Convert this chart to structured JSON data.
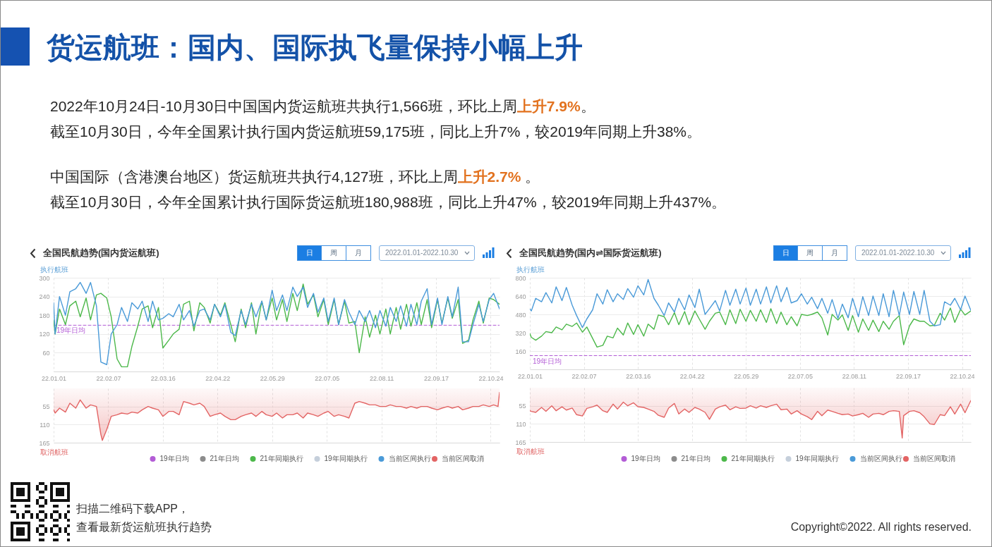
{
  "chart_data": [
    {
      "type": "other",
      "title": "货运航班：国内、国际执飞量保持小幅上升",
      "annotations": [
        "2022年10月24日-10月30日中国国内货运航班共执行1,566班，环比上周",
        "上升7.9%",
        "。",
        "截至10月30日，今年全国累计执行国内货运航班59,175班，同比上升7%，较2019年同期上升38%。",
        "中国国际（含港澳台地区）货运航班共执行4,127班，环比上周",
        "上升2.7%",
        " 。",
        "截至10月30日，今年全国累计执行国际货运航班180,988班，同比上升47%，较2019年同期上升437%。",
        "扫描二维码下载APP，",
        "查看最新货运航班执行趋势",
        "Copyright©2022. All rights reserved."
      ]
    },
    {
      "type": "line",
      "title": "全国民航趋势(国内货运航班)",
      "annotations": [
        "日",
        "周",
        "月",
        "2022.01.01-2022.10.30",
        {
          "text": "19年日均",
          "x": "2022-01-01",
          "y": 148
        }
      ],
      "ylabel": "执行航班",
      "grid": true,
      "legend": "bottom right",
      "x": [
        "2022-01-01",
        "2022-01-02",
        "2022-01-05",
        "2022-01-09",
        "2022-01-12",
        "2022-01-16",
        "2022-01-19",
        "2022-01-23",
        "2022-01-26",
        "2022-01-30",
        "2022-02-02",
        "2022-02-06",
        "2022-02-09",
        "2022-02-13",
        "2022-02-16",
        "2022-02-20",
        "2022-02-23",
        "2022-02-27",
        "2022-03-02",
        "2022-03-06",
        "2022-03-09",
        "2022-03-13",
        "2022-03-16",
        "2022-03-20",
        "2022-03-23",
        "2022-03-27",
        "2022-03-30",
        "2022-04-03",
        "2022-04-06",
        "2022-04-10",
        "2022-04-13",
        "2022-04-17",
        "2022-04-20",
        "2022-04-24",
        "2022-04-27",
        "2022-05-01",
        "2022-05-04",
        "2022-05-08",
        "2022-05-11",
        "2022-05-15",
        "2022-05-18",
        "2022-05-22",
        "2022-05-25",
        "2022-05-29",
        "2022-06-01",
        "2022-06-05",
        "2022-06-08",
        "2022-06-12",
        "2022-06-15",
        "2022-06-19",
        "2022-06-22",
        "2022-06-26",
        "2022-06-29",
        "2022-07-03",
        "2022-07-06",
        "2022-07-10",
        "2022-07-13",
        "2022-07-17",
        "2022-07-20",
        "2022-07-24",
        "2022-07-27",
        "2022-07-31",
        "2022-08-03",
        "2022-08-07",
        "2022-08-10",
        "2022-08-14",
        "2022-08-17",
        "2022-08-21",
        "2022-08-24",
        "2022-08-28",
        "2022-08-31",
        "2022-09-04",
        "2022-09-07",
        "2022-09-11",
        "2022-09-14",
        "2022-09-18",
        "2022-09-21",
        "2022-09-25",
        "2022-09-28",
        "2022-10-02",
        "2022-10-05",
        "2022-10-09",
        "2022-10-12",
        "2022-10-16",
        "2022-10-19",
        "2022-10-23",
        "2022-10-26",
        "2022-10-30"
      ],
      "xlim": [
        "2022-01-01",
        "2022-10-30"
      ],
      "xticks": [
        {
          "value": "2022-01-01",
          "label": "22.01.01"
        },
        {
          "value": "2022-02-07",
          "label": "22.02.07"
        },
        {
          "value": "2022-03-16",
          "label": "22.03.16"
        },
        {
          "value": "2022-04-22",
          "label": "22.04.22"
        },
        {
          "value": "2022-05-29",
          "label": "22.05.29"
        },
        {
          "value": "2022-07-05",
          "label": "22.07.05"
        },
        {
          "value": "2022-08-11",
          "label": "22.08.11"
        },
        {
          "value": "2022-09-17",
          "label": "22.09.17"
        },
        {
          "value": "2022-10-24",
          "label": "22.10.24"
        }
      ],
      "ylim": [
        0,
        300
      ],
      "yticks": [
        60,
        120,
        180,
        240,
        300
      ],
      "series": [
        {
          "name": "19年日均",
          "color": "#b35cd6",
          "line_style": "dashed",
          "x": [
            "2022-01-01",
            "2022-10-30"
          ],
          "values": [
            148,
            148
          ]
        },
        {
          "name": "21年日均",
          "color": "#8c8c8c",
          "values": [
            null,
            null,
            null,
            null,
            null,
            null,
            null,
            null,
            null,
            null,
            null,
            null,
            null,
            null,
            null,
            null,
            null,
            null,
            null,
            null,
            null,
            null,
            null,
            null,
            null,
            null,
            null,
            null,
            null,
            null,
            null,
            null,
            null,
            null,
            null,
            null,
            null,
            null,
            null,
            null,
            null,
            null,
            null,
            null,
            null,
            null,
            null,
            null,
            null,
            null,
            null,
            null,
            null,
            null,
            null,
            null,
            null,
            null,
            null,
            null,
            null,
            null,
            null,
            null,
            null,
            null,
            null,
            null,
            null,
            null,
            null,
            null,
            null,
            null,
            null,
            null,
            null,
            null,
            null,
            null,
            null,
            null,
            null,
            null,
            null,
            null,
            null,
            null
          ]
        },
        {
          "name": "21年同期执行",
          "color": "#4cb84a",
          "values": [
            165,
            120,
            200,
            150,
            210,
            225,
            175,
            235,
            165,
            245,
            250,
            235,
            175,
            40,
            15,
            15,
            80,
            145,
            200,
            210,
            140,
            205,
            75,
            100,
            120,
            135,
            215,
            225,
            130,
            220,
            205,
            155,
            215,
            180,
            220,
            150,
            95,
            200,
            140,
            220,
            120,
            225,
            165,
            235,
            165,
            230,
            160,
            250,
            195,
            280,
            215,
            245,
            175,
            230,
            150,
            230,
            150,
            225,
            155,
            160,
            60,
            175,
            110,
            180,
            120,
            200,
            120,
            205,
            135,
            215,
            145,
            220,
            150,
            230,
            140,
            230,
            155,
            235,
            170,
            230,
            90,
            100,
            165,
            225,
            155,
            235,
            230,
            215
          ]
        },
        {
          "name": "19年同期执行",
          "color": "#c5cfdb",
          "values": [
            null,
            null,
            null,
            null,
            null,
            null,
            null,
            null,
            null,
            null,
            null,
            null,
            null,
            null,
            null,
            null,
            null,
            null,
            null,
            null,
            null,
            null,
            null,
            null,
            null,
            null,
            null,
            null,
            null,
            null,
            null,
            null,
            null,
            null,
            null,
            null,
            null,
            null,
            null,
            null,
            null,
            null,
            null,
            null,
            null,
            null,
            null,
            null,
            null,
            null,
            null,
            null,
            null,
            null,
            null,
            null,
            null,
            null,
            null,
            null,
            null,
            null,
            null,
            null,
            null,
            null,
            null,
            null,
            null,
            null,
            null,
            null,
            null,
            null,
            null,
            null,
            null,
            null,
            null,
            null,
            null,
            null,
            null,
            null,
            null,
            null,
            null,
            null
          ]
        },
        {
          "name": "当前区间执行",
          "color": "#4a9ad8",
          "values": [
            220,
            120,
            240,
            180,
            255,
            265,
            285,
            250,
            285,
            210,
            30,
            22,
            120,
            150,
            205,
            160,
            220,
            200,
            225,
            160,
            225,
            165,
            170,
            185,
            175,
            215,
            165,
            195,
            145,
            195,
            200,
            165,
            215,
            175,
            215,
            125,
            115,
            195,
            150,
            215,
            175,
            225,
            165,
            260,
            195,
            245,
            195,
            270,
            240,
            270,
            205,
            250,
            190,
            235,
            160,
            235,
            150,
            230,
            190,
            150,
            195,
            160,
            195,
            140,
            195,
            145,
            205,
            160,
            210,
            145,
            215,
            150,
            225,
            265,
            150,
            235,
            150,
            240,
            175,
            270,
            95,
            95,
            150,
            215,
            160,
            230,
            250,
            200
          ]
        }
      ]
    },
    {
      "type": "area",
      "ylabel": "取消航班",
      "grid": true,
      "tick_labels": "y",
      "legend": "bottom right",
      "x": [
        "2022-01-01",
        "2022-01-02",
        "2022-01-05",
        "2022-01-09",
        "2022-01-12",
        "2022-01-16",
        "2022-01-19",
        "2022-01-23",
        "2022-01-26",
        "2022-01-30",
        "2022-02-02",
        "2022-02-03",
        "2022-02-06",
        "2022-02-09",
        "2022-02-13",
        "2022-02-16",
        "2022-02-20",
        "2022-02-23",
        "2022-02-27",
        "2022-03-02",
        "2022-03-06",
        "2022-03-09",
        "2022-03-13",
        "2022-03-16",
        "2022-03-20",
        "2022-03-23",
        "2022-03-27",
        "2022-03-30",
        "2022-04-03",
        "2022-04-06",
        "2022-04-10",
        "2022-04-13",
        "2022-04-17",
        "2022-04-20",
        "2022-04-24",
        "2022-04-27",
        "2022-05-01",
        "2022-05-04",
        "2022-05-08",
        "2022-05-11",
        "2022-05-15",
        "2022-05-18",
        "2022-05-22",
        "2022-05-25",
        "2022-05-29",
        "2022-06-01",
        "2022-06-05",
        "2022-06-08",
        "2022-06-12",
        "2022-06-15",
        "2022-06-19",
        "2022-06-22",
        "2022-06-26",
        "2022-06-29",
        "2022-07-03",
        "2022-07-06",
        "2022-07-10",
        "2022-07-13",
        "2022-07-17",
        "2022-07-20",
        "2022-07-24",
        "2022-07-27",
        "2022-07-31",
        "2022-08-03",
        "2022-08-07",
        "2022-08-10",
        "2022-08-14",
        "2022-08-17",
        "2022-08-21",
        "2022-08-24",
        "2022-08-28",
        "2022-08-31",
        "2022-09-04",
        "2022-09-07",
        "2022-09-11",
        "2022-09-14",
        "2022-09-18",
        "2022-09-21",
        "2022-09-25",
        "2022-09-28",
        "2022-10-02",
        "2022-10-05",
        "2022-10-09",
        "2022-10-12",
        "2022-10-16",
        "2022-10-19",
        "2022-10-23",
        "2022-10-26",
        "2022-10-29",
        "2022-10-30"
      ],
      "xlim": [
        "2022-01-01",
        "2022-10-30"
      ],
      "xticks": [
        {
          "value": "2022-01-01",
          "label": null
        },
        {
          "value": "2022-02-07",
          "label": null
        },
        {
          "value": "2022-03-16",
          "label": null
        },
        {
          "value": "2022-04-22",
          "label": null
        },
        {
          "value": "2022-05-29",
          "label": null
        },
        {
          "value": "2022-07-05",
          "label": null
        },
        {
          "value": "2022-08-11",
          "label": null
        },
        {
          "value": "2022-09-17",
          "label": null
        },
        {
          "value": "2022-10-24",
          "label": null
        }
      ],
      "ylim": [
        165,
        0
      ],
      "yticks": [
        55,
        110,
        165
      ],
      "series": [
        {
          "name": "当前区间取消",
          "color": "#e36464",
          "values": [
            65,
            75,
            60,
            72,
            45,
            60,
            35,
            60,
            50,
            55,
            140,
            158,
            125,
            85,
            80,
            75,
            78,
            72,
            75,
            65,
            55,
            60,
            65,
            85,
            70,
            70,
            80,
            40,
            45,
            50,
            45,
            55,
            85,
            80,
            75,
            85,
            95,
            95,
            85,
            80,
            75,
            85,
            70,
            80,
            85,
            75,
            90,
            80,
            80,
            75,
            90,
            75,
            80,
            85,
            75,
            70,
            85,
            80,
            85,
            90,
            45,
            40,
            45,
            50,
            50,
            55,
            55,
            50,
            55,
            55,
            60,
            55,
            60,
            55,
            55,
            60,
            65,
            60,
            55,
            60,
            55,
            65,
            60,
            55,
            55,
            50,
            55,
            50,
            55,
            12
          ]
        }
      ]
    },
    {
      "type": "line",
      "title": "全国民航趋势(国内⇌国际货运航班)",
      "annotations": [
        "日",
        "周",
        "月",
        "2022.01.01-2022.10.30",
        {
          "text": "19年日均",
          "x": "2022-01-01",
          "y": 120
        }
      ],
      "ylabel": "执行航班",
      "grid": true,
      "legend": "bottom right",
      "x": [
        "2022-01-01",
        "2022-01-02",
        "2022-01-05",
        "2022-01-09",
        "2022-01-12",
        "2022-01-16",
        "2022-01-19",
        "2022-01-23",
        "2022-01-26",
        "2022-01-30",
        "2022-02-02",
        "2022-02-06",
        "2022-02-09",
        "2022-02-13",
        "2022-02-16",
        "2022-02-20",
        "2022-02-23",
        "2022-02-27",
        "2022-03-02",
        "2022-03-06",
        "2022-03-09",
        "2022-03-13",
        "2022-03-16",
        "2022-03-20",
        "2022-03-23",
        "2022-03-27",
        "2022-03-30",
        "2022-04-03",
        "2022-04-06",
        "2022-04-10",
        "2022-04-13",
        "2022-04-17",
        "2022-04-20",
        "2022-04-24",
        "2022-04-27",
        "2022-05-01",
        "2022-05-04",
        "2022-05-08",
        "2022-05-11",
        "2022-05-15",
        "2022-05-18",
        "2022-05-22",
        "2022-05-25",
        "2022-05-29",
        "2022-06-01",
        "2022-06-05",
        "2022-06-08",
        "2022-06-12",
        "2022-06-15",
        "2022-06-19",
        "2022-06-22",
        "2022-06-26",
        "2022-06-29",
        "2022-07-03",
        "2022-07-06",
        "2022-07-10",
        "2022-07-13",
        "2022-07-17",
        "2022-07-20",
        "2022-07-24",
        "2022-07-27",
        "2022-07-31",
        "2022-08-03",
        "2022-08-07",
        "2022-08-10",
        "2022-08-14",
        "2022-08-17",
        "2022-08-21",
        "2022-08-24",
        "2022-08-28",
        "2022-08-31",
        "2022-09-04",
        "2022-09-07",
        "2022-09-11",
        "2022-09-14",
        "2022-09-18",
        "2022-09-21",
        "2022-09-25",
        "2022-09-28",
        "2022-10-02",
        "2022-10-05",
        "2022-10-09",
        "2022-10-12",
        "2022-10-16",
        "2022-10-19",
        "2022-10-23",
        "2022-10-26",
        "2022-10-30"
      ],
      "xlim": [
        "2022-01-01",
        "2022-10-30"
      ],
      "xticks": [
        {
          "value": "2022-01-01",
          "label": "22.01.01"
        },
        {
          "value": "2022-02-07",
          "label": "22.02.07"
        },
        {
          "value": "2022-03-16",
          "label": "22.03.16"
        },
        {
          "value": "2022-04-22",
          "label": "22.04.22"
        },
        {
          "value": "2022-05-29",
          "label": "22.05.29"
        },
        {
          "value": "2022-07-05",
          "label": "22.07.05"
        },
        {
          "value": "2022-08-11",
          "label": "22.08.11"
        },
        {
          "value": "2022-09-17",
          "label": "22.09.17"
        },
        {
          "value": "2022-10-24",
          "label": "22.10.24"
        }
      ],
      "ylim": [
        0,
        800
      ],
      "yticks": [
        160,
        320,
        480,
        640,
        800
      ],
      "series": [
        {
          "name": "19年日均",
          "color": "#b35cd6",
          "line_style": "dashed",
          "x": [
            "2022-01-01",
            "2022-10-30"
          ],
          "values": [
            120,
            120
          ]
        },
        {
          "name": "21年日均",
          "color": "#8c8c8c",
          "values": [
            null,
            null,
            null,
            null,
            null,
            null,
            null,
            null,
            null,
            null,
            null,
            null,
            null,
            null,
            null,
            null,
            null,
            null,
            null,
            null,
            null,
            null,
            null,
            null,
            null,
            null,
            null,
            null,
            null,
            null,
            null,
            null,
            null,
            null,
            null,
            null,
            null,
            null,
            null,
            null,
            null,
            null,
            null,
            null,
            null,
            null,
            null,
            null,
            null,
            null,
            null,
            null,
            null,
            null,
            null,
            null,
            null,
            null,
            null,
            null,
            null,
            null,
            null,
            null,
            null,
            null,
            null,
            null,
            null,
            null,
            null,
            null,
            null,
            null,
            null,
            null,
            null,
            null,
            null,
            null,
            null,
            null,
            null,
            null,
            null,
            null,
            null,
            null
          ]
        },
        {
          "name": "21年同期执行",
          "color": "#4cb84a",
          "values": [
            312,
            280,
            255,
            290,
            330,
            320,
            370,
            345,
            395,
            375,
            405,
            325,
            370,
            270,
            195,
            210,
            290,
            275,
            360,
            300,
            405,
            305,
            390,
            290,
            395,
            350,
            475,
            460,
            390,
            495,
            390,
            505,
            390,
            510,
            440,
            350,
            420,
            490,
            500,
            390,
            520,
            400,
            525,
            420,
            515,
            420,
            520,
            410,
            530,
            400,
            500,
            390,
            460,
            380,
            480,
            470,
            480,
            500,
            450,
            300,
            480,
            430,
            475,
            340,
            470,
            325,
            440,
            340,
            430,
            330,
            420,
            350,
            420,
            470,
            215,
            380,
            440,
            420,
            420,
            380,
            385,
            490,
            430,
            535,
            410,
            525,
            475,
            510
          ]
        },
        {
          "name": "19年同期执行",
          "color": "#c5cfdb",
          "values": [
            null,
            null,
            null,
            null,
            null,
            null,
            null,
            null,
            null,
            null,
            null,
            null,
            null,
            null,
            null,
            null,
            null,
            null,
            null,
            null,
            null,
            null,
            null,
            null,
            null,
            null,
            null,
            null,
            null,
            null,
            null,
            null,
            null,
            null,
            null,
            null,
            null,
            null,
            null,
            null,
            null,
            null,
            null,
            null,
            null,
            null,
            null,
            null,
            null,
            null,
            null,
            null,
            null,
            null,
            null,
            null,
            null,
            null,
            null,
            null,
            null,
            null,
            null,
            null,
            null,
            null,
            null,
            null,
            null,
            null,
            null,
            null,
            null,
            null,
            null,
            null,
            null,
            null,
            null,
            null,
            null,
            null,
            null,
            null,
            null,
            null,
            null,
            null
          ]
        },
        {
          "name": "当前区间执行",
          "color": "#4a9ad8",
          "values": [
            527,
            510,
            620,
            590,
            670,
            580,
            720,
            600,
            715,
            560,
            470,
            365,
            440,
            520,
            660,
            570,
            695,
            590,
            660,
            610,
            705,
            630,
            730,
            650,
            785,
            620,
            560,
            470,
            580,
            500,
            620,
            520,
            650,
            540,
            700,
            480,
            530,
            600,
            510,
            690,
            560,
            700,
            570,
            710,
            560,
            700,
            570,
            720,
            580,
            730,
            590,
            715,
            580,
            600,
            660,
            570,
            630,
            530,
            620,
            490,
            610,
            445,
            570,
            450,
            620,
            460,
            635,
            470,
            640,
            470,
            660,
            460,
            690,
            470,
            675,
            480,
            680,
            480,
            690,
            420,
            380,
            390,
            590,
            560,
            620,
            520,
            640,
            515
          ]
        }
      ]
    },
    {
      "type": "area",
      "ylabel": "取消航班",
      "grid": true,
      "tick_labels": "y",
      "legend": "bottom right",
      "x": [
        "2022-01-01",
        "2022-01-02",
        "2022-01-05",
        "2022-01-09",
        "2022-01-12",
        "2022-01-16",
        "2022-01-19",
        "2022-01-23",
        "2022-01-26",
        "2022-01-30",
        "2022-02-02",
        "2022-02-06",
        "2022-02-09",
        "2022-02-13",
        "2022-02-16",
        "2022-02-20",
        "2022-02-23",
        "2022-02-27",
        "2022-03-02",
        "2022-03-06",
        "2022-03-09",
        "2022-03-13",
        "2022-03-16",
        "2022-03-20",
        "2022-03-23",
        "2022-03-27",
        "2022-03-30",
        "2022-04-03",
        "2022-04-06",
        "2022-04-10",
        "2022-04-13",
        "2022-04-17",
        "2022-04-20",
        "2022-04-24",
        "2022-04-27",
        "2022-05-01",
        "2022-05-04",
        "2022-05-08",
        "2022-05-11",
        "2022-05-15",
        "2022-05-18",
        "2022-05-22",
        "2022-05-25",
        "2022-05-29",
        "2022-06-01",
        "2022-06-05",
        "2022-06-08",
        "2022-06-12",
        "2022-06-15",
        "2022-06-19",
        "2022-06-22",
        "2022-06-26",
        "2022-06-29",
        "2022-07-03",
        "2022-07-06",
        "2022-07-10",
        "2022-07-13",
        "2022-07-17",
        "2022-07-20",
        "2022-07-24",
        "2022-07-27",
        "2022-07-31",
        "2022-08-03",
        "2022-08-07",
        "2022-08-10",
        "2022-08-14",
        "2022-08-17",
        "2022-08-21",
        "2022-08-24",
        "2022-08-28",
        "2022-08-31",
        "2022-09-04",
        "2022-09-07",
        "2022-09-11",
        "2022-09-13",
        "2022-09-14",
        "2022-09-18",
        "2022-09-21",
        "2022-09-25",
        "2022-09-28",
        "2022-10-02",
        "2022-10-05",
        "2022-10-09",
        "2022-10-12",
        "2022-10-16",
        "2022-10-19",
        "2022-10-23",
        "2022-10-26",
        "2022-10-30"
      ],
      "xlim": [
        "2022-01-01",
        "2022-10-30"
      ],
      "xticks": [
        {
          "value": "2022-01-01",
          "label": null
        },
        {
          "value": "2022-02-07",
          "label": null
        },
        {
          "value": "2022-03-16",
          "label": null
        },
        {
          "value": "2022-04-22",
          "label": null
        },
        {
          "value": "2022-05-29",
          "label": null
        },
        {
          "value": "2022-07-05",
          "label": null
        },
        {
          "value": "2022-08-11",
          "label": null
        },
        {
          "value": "2022-09-17",
          "label": null
        },
        {
          "value": "2022-10-24",
          "label": null
        }
      ],
      "ylim": [
        165,
        0
      ],
      "yticks": [
        55,
        110,
        165
      ],
      "series": [
        {
          "name": "当前区间取消",
          "color": "#e36464",
          "values": [
            70,
            72,
            75,
            60,
            72,
            55,
            70,
            58,
            68,
            62,
            82,
            86,
            63,
            58,
            53,
            70,
            75,
            50,
            65,
            44,
            55,
            46,
            58,
            60,
            65,
            72,
            84,
            90,
            62,
            48,
            80,
            65,
            75,
            60,
            65,
            75,
            96,
            65,
            58,
            53,
            67,
            58,
            63,
            62,
            55,
            62,
            55,
            60,
            55,
            50,
            67,
            65,
            80,
            70,
            80,
            88,
            97,
            72,
            85,
            68,
            72,
            78,
            82,
            80,
            86,
            82,
            78,
            90,
            80,
            78,
            82,
            72,
            70,
            72,
            153,
            85,
            72,
            70,
            76,
            88,
            110,
            112,
            82,
            85,
            58,
            80,
            50,
            76,
            39
          ]
        }
      ]
    }
  ]
}
